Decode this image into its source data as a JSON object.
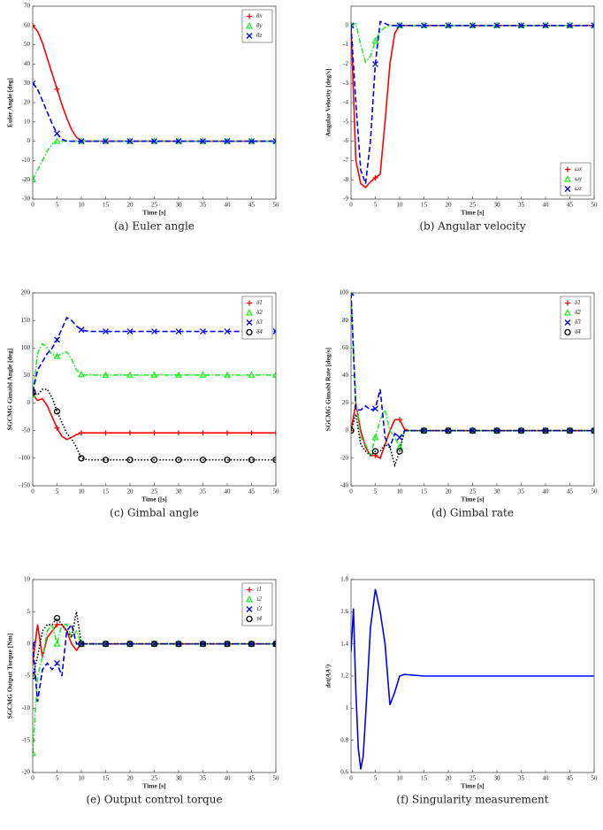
{
  "chart_data": [
    {
      "type": "line",
      "caption": "(a) Euler angle",
      "xlabel": "Time [s]",
      "ylabel": "Euler Angle [deg]",
      "legend": "upper right",
      "x": [
        0,
        1,
        2,
        3,
        4,
        5,
        6,
        7,
        8,
        9,
        10,
        11,
        12,
        15,
        20,
        25,
        30,
        35,
        40,
        45,
        50
      ],
      "xlim": [
        0,
        50
      ],
      "xticks": [
        0,
        5,
        10,
        15,
        20,
        25,
        30,
        35,
        40,
        45,
        50
      ],
      "ylim": [
        -30,
        70
      ],
      "yticks": [
        -30,
        -20,
        -10,
        0,
        10,
        20,
        30,
        40,
        50,
        60,
        70
      ],
      "series": [
        {
          "name": "θx",
          "color": "#ff0000",
          "marker": "+",
          "dash": "solid",
          "values": [
            60,
            57,
            51,
            43,
            35,
            27,
            19,
            12,
            6,
            2,
            0.3,
            0,
            0,
            0,
            0,
            0,
            0,
            0,
            0,
            0,
            0
          ]
        },
        {
          "name": "θy",
          "color": "#22ee22",
          "marker": "^",
          "dash": "dashdot",
          "values": [
            -20,
            -15,
            -10,
            -5,
            -1.5,
            0,
            0,
            0,
            0,
            0,
            0,
            0,
            0,
            0,
            0,
            0,
            0,
            0,
            0,
            0,
            0
          ]
        },
        {
          "name": "θz",
          "color": "#0000ff",
          "marker": "x",
          "dash": "dashed",
          "values": [
            30,
            27,
            21,
            15,
            9,
            4,
            1,
            0,
            0,
            0,
            0,
            0,
            0,
            0,
            0,
            0,
            0,
            0,
            0,
            0,
            0
          ]
        }
      ]
    },
    {
      "type": "line",
      "caption": "(b) Angular velocity",
      "xlabel": "Time [s]",
      "ylabel": "Angular Velocity [deg/s]",
      "legend": "lower right",
      "x": [
        0,
        1,
        2,
        3,
        4,
        5,
        6,
        7,
        8,
        9,
        10,
        11,
        12,
        15,
        20,
        25,
        30,
        35,
        40,
        45,
        50
      ],
      "xlim": [
        0,
        50
      ],
      "xticks": [
        0,
        5,
        10,
        15,
        20,
        25,
        30,
        35,
        40,
        45,
        50
      ],
      "ylim": [
        -9,
        1
      ],
      "yticks": [
        -9,
        -8,
        -7,
        -6,
        -5,
        -4,
        -3,
        -2,
        -1,
        0
      ],
      "series": [
        {
          "name": "ωx",
          "color": "#ff0000",
          "marker": "+",
          "dash": "solid",
          "values": [
            0,
            -7,
            -8.2,
            -8.4,
            -8.1,
            -7.9,
            -7.7,
            -5,
            -2,
            -0.4,
            0,
            0,
            0,
            0,
            0,
            0,
            0,
            0,
            0,
            0,
            0
          ]
        },
        {
          "name": "ωy",
          "color": "#22ee22",
          "marker": "^",
          "dash": "dashdot",
          "values": [
            0,
            0.1,
            -1,
            -1.9,
            -1.6,
            -0.8,
            -0.3,
            -0.1,
            0,
            0,
            0,
            0,
            0,
            0,
            0,
            0,
            0,
            0,
            0,
            0,
            0
          ]
        },
        {
          "name": "ωz",
          "color": "#0000ff",
          "marker": "x",
          "dash": "dashed",
          "values": [
            0,
            -4,
            -7.5,
            -8.2,
            -6,
            -2,
            0.2,
            0.1,
            0,
            0,
            0,
            0,
            0,
            0,
            0,
            0,
            0,
            0,
            0,
            0,
            0
          ]
        }
      ]
    },
    {
      "type": "line",
      "caption": "(c) Gimbal angle",
      "xlabel": "Time ([s]",
      "ylabel": "SGCMG Gimabl Angle [deg]",
      "legend": "upper right",
      "x": [
        0,
        1,
        2,
        3,
        4,
        5,
        6,
        7,
        8,
        9,
        10,
        11,
        12,
        15,
        20,
        25,
        30,
        35,
        40,
        45,
        50
      ],
      "xlim": [
        0,
        50
      ],
      "xticks": [
        0,
        5,
        10,
        15,
        20,
        25,
        30,
        35,
        40,
        45,
        50
      ],
      "ylim": [
        -150,
        200
      ],
      "yticks": [
        -150,
        -100,
        -50,
        0,
        50,
        100,
        150,
        200
      ],
      "series": [
        {
          "name": "δ1",
          "color": "#ff0000",
          "marker": "+",
          "dash": "solid",
          "values": [
            15,
            5,
            8,
            -5,
            -25,
            -45,
            -60,
            -66,
            -62,
            -57,
            -54,
            -54,
            -54,
            -54,
            -54,
            -54,
            -54,
            -54,
            -54,
            -54,
            -54
          ]
        },
        {
          "name": "δ2",
          "color": "#22ee22",
          "marker": "^",
          "dash": "dashdot",
          "values": [
            15,
            90,
            108,
            100,
            88,
            85,
            90,
            93,
            80,
            60,
            52,
            51,
            51,
            51,
            51,
            51,
            51,
            51,
            51,
            51,
            51
          ]
        },
        {
          "name": "δ3",
          "color": "#0000ff",
          "marker": "x",
          "dash": "dashed",
          "values": [
            20,
            60,
            75,
            90,
            100,
            115,
            135,
            155,
            150,
            140,
            133,
            131,
            130,
            130,
            130,
            130,
            130,
            130,
            130,
            130,
            130
          ]
        },
        {
          "name": "δ4",
          "color": "#000000",
          "marker": "o",
          "dash": "dotted",
          "values": [
            20,
            15,
            25,
            25,
            10,
            -15,
            -35,
            -55,
            -65,
            -80,
            -100,
            -102,
            -103,
            -103,
            -103,
            -103,
            -103,
            -103,
            -103,
            -103,
            -103
          ]
        }
      ]
    },
    {
      "type": "line",
      "caption": "(d) Gimbal rate",
      "xlabel": "Time [s]",
      "ylabel": "SGCMG Gimabl Rate [deg/s]",
      "legend": "upper right",
      "x": [
        0,
        1,
        2,
        3,
        4,
        5,
        6,
        7,
        8,
        9,
        10,
        11,
        12,
        15,
        20,
        25,
        30,
        35,
        40,
        45,
        50
      ],
      "xlim": [
        0,
        50
      ],
      "xticks": [
        0,
        5,
        10,
        15,
        20,
        25,
        30,
        35,
        40,
        45,
        50
      ],
      "ylim": [
        -40,
        100
      ],
      "yticks": [
        -40,
        -20,
        0,
        20,
        40,
        60,
        80,
        100
      ],
      "series": [
        {
          "name": "δ̇1",
          "color": "#ff0000",
          "marker": "+",
          "dash": "solid",
          "values": [
            0,
            20,
            0,
            -12,
            -18,
            -18,
            -20,
            -10,
            0,
            8,
            8,
            1,
            0,
            0,
            0,
            0,
            0,
            0,
            0,
            0,
            0
          ]
        },
        {
          "name": "δ̇2",
          "color": "#22ee22",
          "marker": "^",
          "dash": "dashdot",
          "values": [
            100,
            20,
            -5,
            -10,
            -18,
            -5,
            8,
            15,
            0,
            -5,
            -12,
            0,
            0,
            0,
            0,
            0,
            0,
            0,
            0,
            0,
            0
          ]
        },
        {
          "name": "δ̇3",
          "color": "#0000ff",
          "marker": "x",
          "dash": "dashed",
          "values": [
            100,
            15,
            15,
            18,
            15,
            16,
            30,
            -5,
            -12,
            -2,
            -5,
            0,
            0,
            0,
            0,
            0,
            0,
            0,
            0,
            0,
            0
          ]
        },
        {
          "name": "δ̇4",
          "color": "#000000",
          "marker": "o",
          "dash": "dotted",
          "values": [
            0,
            12,
            -10,
            -15,
            -18,
            -15,
            -15,
            -10,
            -12,
            -25,
            -15,
            0,
            0,
            0,
            0,
            0,
            0,
            0,
            0,
            0,
            0
          ]
        }
      ]
    },
    {
      "type": "line",
      "caption": "(e) Output control torque",
      "xlabel": "Time [s]",
      "ylabel": "SGCMG Output Torque [Nm]",
      "legend": "upper right",
      "x": [
        0,
        1,
        2,
        3,
        4,
        5,
        6,
        7,
        8,
        9,
        10,
        11,
        12,
        15,
        20,
        25,
        30,
        35,
        40,
        45,
        50
      ],
      "xlim": [
        0,
        50
      ],
      "xticks": [
        0,
        5,
        10,
        15,
        20,
        25,
        30,
        35,
        40,
        45,
        50
      ],
      "ylim": [
        -20,
        10
      ],
      "yticks": [
        -20,
        -15,
        -10,
        -5,
        0,
        5,
        10
      ],
      "series": [
        {
          "name": "τ1",
          "color": "#ff0000",
          "marker": "+",
          "dash": "solid",
          "values": [
            -3,
            3,
            -2,
            1,
            2,
            3,
            3,
            2,
            0,
            -1,
            0,
            0,
            0,
            0,
            0,
            0,
            0,
            0,
            0,
            0,
            0
          ]
        },
        {
          "name": "τ2",
          "color": "#22ee22",
          "marker": "^",
          "dash": "dashdot",
          "values": [
            -17,
            -5,
            -2,
            2,
            3,
            0,
            3,
            3,
            1,
            2,
            0,
            0,
            0,
            0,
            0,
            0,
            0,
            0,
            0,
            0,
            0
          ]
        },
        {
          "name": "τ3",
          "color": "#0000ff",
          "marker": "x",
          "dash": "dashed",
          "values": [
            0,
            -9,
            -4,
            -3,
            -4,
            -3,
            -5,
            2,
            3,
            0,
            0,
            0,
            0,
            0,
            0,
            0,
            0,
            0,
            0,
            0,
            0
          ]
        },
        {
          "name": "τ4",
          "color": "#000000",
          "marker": "o",
          "dash": "dotted",
          "values": [
            -5,
            -2,
            2,
            3,
            3,
            4,
            3,
            2,
            1,
            5,
            0,
            0,
            0,
            0,
            0,
            0,
            0,
            0,
            0,
            0,
            0
          ]
        }
      ]
    },
    {
      "type": "line",
      "caption": "(f) Singularity measurement",
      "xlabel": "Time [s]",
      "ylabel": "det(AAᵀ)",
      "x": [
        0,
        0.5,
        1,
        1.5,
        2,
        2.5,
        3,
        4,
        5,
        6,
        6.5,
        7,
        8,
        9,
        10,
        11,
        15,
        20,
        25,
        30,
        35,
        40,
        45,
        50
      ],
      "xlim": [
        0,
        50
      ],
      "xticks": [
        0,
        5,
        10,
        15,
        20,
        25,
        30,
        35,
        40,
        45,
        50
      ],
      "ylim": [
        0.6,
        1.8
      ],
      "yticks": [
        0.6,
        0.8,
        1,
        1.2,
        1.4,
        1.6,
        1.8
      ],
      "series": [
        {
          "color": "#0000ff",
          "dash": "solid",
          "values": [
            1.35,
            1.62,
            1.1,
            0.75,
            0.62,
            0.7,
            0.95,
            1.5,
            1.74,
            1.6,
            1.5,
            1.4,
            1.02,
            1.1,
            1.2,
            1.21,
            1.2,
            1.2,
            1.2,
            1.2,
            1.2,
            1.2,
            1.2,
            1.2
          ]
        }
      ]
    }
  ]
}
